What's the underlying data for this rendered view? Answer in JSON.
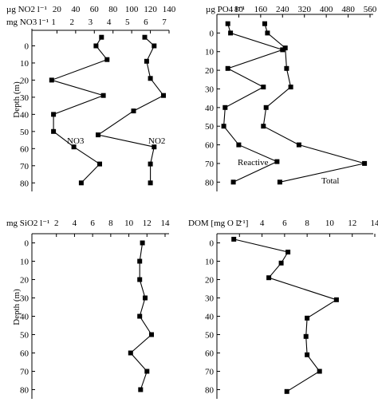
{
  "chart_data": [
    {
      "id": "nitrogen",
      "type": "line",
      "title": "",
      "header_top": "µg NO2 l⁻¹",
      "header_bottom": "mg NO3 l⁻¹",
      "ylabel": "Depth (m)",
      "ylim": [
        -10,
        85
      ],
      "y_ticks": [
        0,
        10,
        20,
        30,
        40,
        50,
        60,
        70,
        80
      ],
      "x_top": {
        "ticks": [
          20,
          40,
          60,
          80,
          100,
          120,
          140
        ],
        "lim": [
          0,
          140
        ]
      },
      "x_bottom": {
        "ticks": [
          1,
          2,
          3,
          4,
          5,
          6,
          7
        ],
        "lim": [
          0,
          7
        ]
      },
      "series": [
        {
          "name": "NO3",
          "axis": "bottom",
          "points": [
            {
              "x": 3.6,
              "y": -5
            },
            {
              "x": 3.3,
              "y": 0
            },
            {
              "x": 3.9,
              "y": 8
            },
            {
              "x": 0.9,
              "y": 20
            },
            {
              "x": 3.7,
              "y": 29
            },
            {
              "x": 1.0,
              "y": 40
            },
            {
              "x": 1.0,
              "y": 50
            },
            {
              "x": 2.1,
              "y": 59
            },
            {
              "x": 3.5,
              "y": 69
            },
            {
              "x": 2.5,
              "y": 80
            }
          ]
        },
        {
          "name": "NO2",
          "axis": "top",
          "points": [
            {
              "x": 114,
              "y": -5
            },
            {
              "x": 124,
              "y": 0
            },
            {
              "x": 116,
              "y": 9
            },
            {
              "x": 120,
              "y": 19
            },
            {
              "x": 134,
              "y": 29
            },
            {
              "x": 102,
              "y": 38
            },
            {
              "x": 64,
              "y": 52
            },
            {
              "x": 124,
              "y": 59
            },
            {
              "x": 120,
              "y": 69
            },
            {
              "x": 120,
              "y": 80
            }
          ]
        }
      ]
    },
    {
      "id": "phosphate",
      "type": "line",
      "title": "",
      "header_top": "µg PO4 l⁻¹",
      "ylim": [
        -10,
        85
      ],
      "y_ticks": [
        0,
        10,
        20,
        30,
        40,
        50,
        60,
        70,
        80
      ],
      "x_top": {
        "ticks": [
          80,
          160,
          240,
          320,
          400,
          480,
          560
        ],
        "lim": [
          0,
          560
        ]
      },
      "series": [
        {
          "name": "Reactive",
          "axis": "top",
          "points": [
            {
              "x": 40,
              "y": -5
            },
            {
              "x": 50,
              "y": 0
            },
            {
              "x": 240,
              "y": 9
            },
            {
              "x": 40,
              "y": 19
            },
            {
              "x": 170,
              "y": 29
            },
            {
              "x": 30,
              "y": 40
            },
            {
              "x": 25,
              "y": 50
            },
            {
              "x": 80,
              "y": 60
            },
            {
              "x": 220,
              "y": 69
            },
            {
              "x": 60,
              "y": 80
            }
          ]
        },
        {
          "name": "Total",
          "axis": "top",
          "points": [
            {
              "x": 175,
              "y": -5
            },
            {
              "x": 185,
              "y": 0
            },
            {
              "x": 250,
              "y": 8
            },
            {
              "x": 255,
              "y": 19
            },
            {
              "x": 270,
              "y": 29
            },
            {
              "x": 180,
              "y": 40
            },
            {
              "x": 170,
              "y": 50
            },
            {
              "x": 300,
              "y": 60
            },
            {
              "x": 540,
              "y": 70
            },
            {
              "x": 230,
              "y": 80
            }
          ]
        }
      ]
    },
    {
      "id": "silica",
      "type": "line",
      "title": "",
      "header_top": "mg SiO2 l⁻¹",
      "ylabel": "Depth (m)",
      "ylim": [
        -5,
        85
      ],
      "y_ticks": [
        0,
        10,
        20,
        30,
        40,
        50,
        60,
        70,
        80
      ],
      "x_top": {
        "ticks": [
          2,
          4,
          6,
          8,
          10,
          12,
          14
        ],
        "lim": [
          0,
          14
        ]
      },
      "series": [
        {
          "name": "",
          "axis": "top",
          "points": [
            {
              "x": 11.5,
              "y": 0
            },
            {
              "x": 11.2,
              "y": 10
            },
            {
              "x": 11.2,
              "y": 20
            },
            {
              "x": 11.8,
              "y": 30
            },
            {
              "x": 11.2,
              "y": 40
            },
            {
              "x": 12.5,
              "y": 50
            },
            {
              "x": 10.2,
              "y": 60
            },
            {
              "x": 12.0,
              "y": 70
            },
            {
              "x": 11.3,
              "y": 80
            }
          ]
        }
      ]
    },
    {
      "id": "dom",
      "type": "line",
      "title": "",
      "header_top": "DOM [mg O l⁻¹]",
      "ylim": [
        -5,
        85
      ],
      "y_ticks": [
        0,
        10,
        20,
        30,
        40,
        50,
        60,
        70,
        80
      ],
      "x_top": {
        "ticks": [
          2,
          4,
          6,
          8,
          10,
          12,
          14
        ],
        "lim": [
          0,
          14
        ]
      },
      "series": [
        {
          "name": "",
          "axis": "top",
          "points": [
            {
              "x": 1.5,
              "y": -2
            },
            {
              "x": 6.3,
              "y": 5
            },
            {
              "x": 5.7,
              "y": 11
            },
            {
              "x": 4.6,
              "y": 19
            },
            {
              "x": 10.6,
              "y": 31
            },
            {
              "x": 8.0,
              "y": 41
            },
            {
              "x": 7.9,
              "y": 51
            },
            {
              "x": 8.0,
              "y": 61
            },
            {
              "x": 9.1,
              "y": 70
            },
            {
              "x": 6.2,
              "y": 81
            }
          ]
        }
      ]
    }
  ]
}
